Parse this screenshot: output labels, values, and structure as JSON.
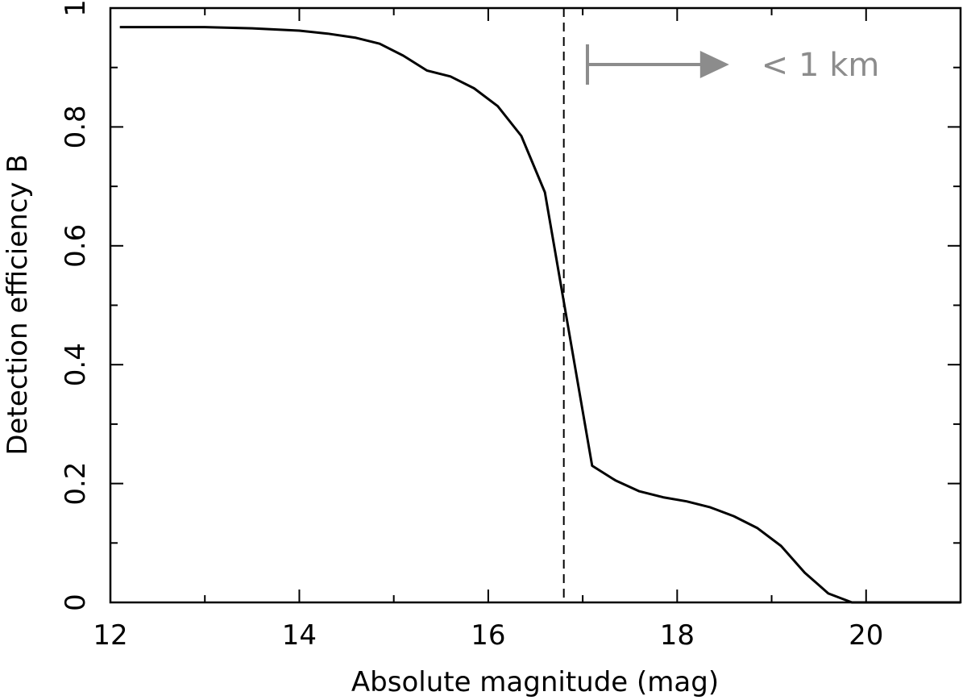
{
  "chart_data": {
    "type": "line",
    "xlabel": "Absolute magnitude (mag)",
    "ylabel": "Detection efficiency B",
    "xlim": [
      12,
      21
    ],
    "ylim": [
      0,
      1
    ],
    "x_ticks": [
      12,
      14,
      16,
      18,
      20
    ],
    "x_tick_labels": [
      "12",
      "14",
      "16",
      "18",
      "20"
    ],
    "x_minor_ticks": [
      13,
      15,
      17,
      19,
      21
    ],
    "y_ticks": [
      0,
      0.2,
      0.4,
      0.6,
      0.8,
      1
    ],
    "y_tick_labels": [
      "0",
      "0.2",
      "0.4",
      "0.6",
      "0.8",
      "1"
    ],
    "y_minor_ticks": [
      0.1,
      0.3,
      0.5,
      0.7,
      0.9
    ],
    "grid": false,
    "series": [
      {
        "color": "#000000",
        "x": [
          12.1,
          12.5,
          13.0,
          13.5,
          14.0,
          14.3,
          14.6,
          14.85,
          15.1,
          15.35,
          15.6,
          15.85,
          16.1,
          16.35,
          16.6,
          16.85,
          17.1,
          17.35,
          17.6,
          17.85,
          18.1,
          18.35,
          18.6,
          18.85,
          19.1,
          19.35,
          19.6,
          19.85,
          20.1,
          21.0
        ],
        "y": [
          0.968,
          0.968,
          0.968,
          0.966,
          0.962,
          0.957,
          0.95,
          0.94,
          0.92,
          0.895,
          0.885,
          0.865,
          0.835,
          0.785,
          0.69,
          0.46,
          0.23,
          0.205,
          0.187,
          0.177,
          0.17,
          0.16,
          0.145,
          0.125,
          0.095,
          0.05,
          0.015,
          0.0,
          0.0,
          0.0
        ]
      }
    ],
    "vline": {
      "x": 16.8,
      "style": "dashed",
      "color": "#000000"
    },
    "annotation": {
      "text": "< 1 km",
      "color": "#8c8c8c",
      "arrow_from_x": 17.05,
      "arrow_to_x": 18.55,
      "y": 0.905
    }
  }
}
